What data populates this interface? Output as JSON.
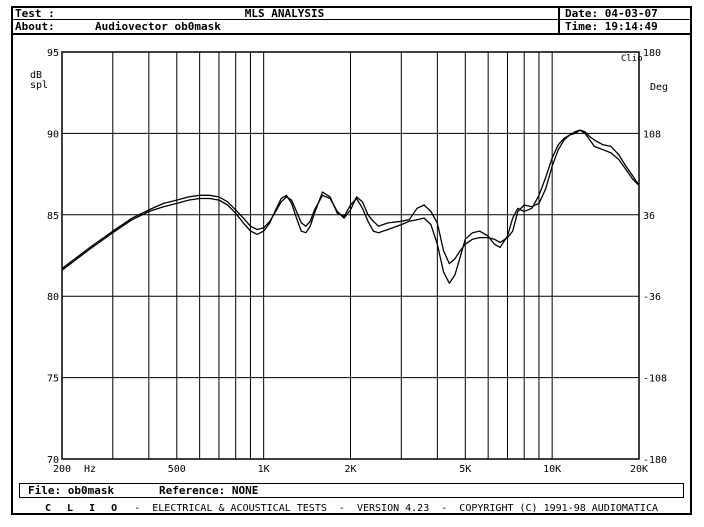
{
  "header": {
    "test_label": "Test :",
    "about_label": "About:",
    "title": "MLS ANALYSIS",
    "about_value": "Audiovector ob0mask",
    "date": "Date: 04-03-07",
    "time": "Time: 19:14:49"
  },
  "footer": {
    "file_label": "File: ob0mask",
    "reference_label": "Reference: NONE",
    "brand": "C L I O",
    "credits": "-  ELECTRICAL & ACOUSTICAL TESTS  -  VERSION 4.23  -  COPYRIGHT (C) 1991-98 AUDIOMATICA"
  },
  "chart_data": {
    "type": "line",
    "xscale": "log",
    "xlim": [
      200,
      20000
    ],
    "ylim": [
      70,
      95
    ],
    "y2lim": [
      -180,
      180
    ],
    "grid": true,
    "ylabel": "dB spl",
    "y2label": "Deg",
    "corner_label": "Clio",
    "x_unit": "Hz",
    "x_ticks": [
      {
        "value": 200,
        "label": "200"
      },
      {
        "value": 500,
        "label": "500"
      },
      {
        "value": 1000,
        "label": "1K"
      },
      {
        "value": 2000,
        "label": "2K"
      },
      {
        "value": 5000,
        "label": "5K"
      },
      {
        "value": 10000,
        "label": "10K"
      },
      {
        "value": 20000,
        "label": "20K"
      }
    ],
    "y_ticks": [
      95,
      90,
      85,
      80,
      75,
      70
    ],
    "y2_ticks": [
      180,
      108,
      36,
      -36,
      -108,
      -180
    ],
    "series": [
      {
        "values": [
          [
            200,
            81.7
          ],
          [
            250,
            83.0
          ],
          [
            300,
            84.0
          ],
          [
            350,
            84.8
          ],
          [
            400,
            85.3
          ],
          [
            450,
            85.7
          ],
          [
            500,
            85.9
          ],
          [
            550,
            86.1
          ],
          [
            600,
            86.2
          ],
          [
            650,
            86.2
          ],
          [
            700,
            86.1
          ],
          [
            750,
            85.8
          ],
          [
            800,
            85.3
          ],
          [
            850,
            84.8
          ],
          [
            900,
            84.3
          ],
          [
            950,
            84.1
          ],
          [
            1000,
            84.2
          ],
          [
            1050,
            84.6
          ],
          [
            1100,
            85.2
          ],
          [
            1150,
            85.8
          ],
          [
            1200,
            86.1
          ],
          [
            1250,
            85.9
          ],
          [
            1300,
            85.2
          ],
          [
            1350,
            84.5
          ],
          [
            1400,
            84.3
          ],
          [
            1450,
            84.6
          ],
          [
            1500,
            85.3
          ],
          [
            1600,
            86.2
          ],
          [
            1700,
            86.0
          ],
          [
            1800,
            85.2
          ],
          [
            1900,
            84.8
          ],
          [
            2000,
            85.3
          ],
          [
            2100,
            86.1
          ],
          [
            2200,
            85.8
          ],
          [
            2300,
            85.0
          ],
          [
            2400,
            84.6
          ],
          [
            2500,
            84.3
          ],
          [
            2700,
            84.5
          ],
          [
            3000,
            84.6
          ],
          [
            3200,
            84.7
          ],
          [
            3400,
            85.4
          ],
          [
            3600,
            85.6
          ],
          [
            3800,
            85.2
          ],
          [
            4000,
            84.5
          ],
          [
            4200,
            82.8
          ],
          [
            4400,
            82.0
          ],
          [
            4600,
            82.3
          ],
          [
            4800,
            82.8
          ],
          [
            5000,
            83.2
          ],
          [
            5300,
            83.5
          ],
          [
            5600,
            83.6
          ],
          [
            6000,
            83.6
          ],
          [
            6300,
            83.5
          ],
          [
            6600,
            83.3
          ],
          [
            7000,
            83.6
          ],
          [
            7300,
            84.0
          ],
          [
            7600,
            85.2
          ],
          [
            8000,
            85.6
          ],
          [
            8500,
            85.5
          ],
          [
            9000,
            85.7
          ],
          [
            9500,
            86.6
          ],
          [
            10000,
            88.0
          ],
          [
            10500,
            89.0
          ],
          [
            11000,
            89.6
          ],
          [
            11500,
            89.9
          ],
          [
            12000,
            90.0
          ],
          [
            12500,
            90.2
          ],
          [
            13000,
            90.1
          ],
          [
            13500,
            89.8
          ],
          [
            14000,
            89.6
          ],
          [
            15000,
            89.3
          ],
          [
            16000,
            89.2
          ],
          [
            17000,
            88.7
          ],
          [
            18000,
            88.0
          ],
          [
            19000,
            87.4
          ],
          [
            20000,
            86.8
          ]
        ]
      },
      {
        "values": [
          [
            200,
            81.6
          ],
          [
            250,
            82.9
          ],
          [
            300,
            83.9
          ],
          [
            350,
            84.7
          ],
          [
            400,
            85.2
          ],
          [
            450,
            85.5
          ],
          [
            500,
            85.7
          ],
          [
            550,
            85.9
          ],
          [
            600,
            86.0
          ],
          [
            650,
            86.0
          ],
          [
            700,
            85.9
          ],
          [
            750,
            85.6
          ],
          [
            800,
            85.1
          ],
          [
            850,
            84.5
          ],
          [
            900,
            84.0
          ],
          [
            950,
            83.8
          ],
          [
            1000,
            84.0
          ],
          [
            1050,
            84.5
          ],
          [
            1100,
            85.3
          ],
          [
            1150,
            86.0
          ],
          [
            1200,
            86.2
          ],
          [
            1250,
            85.7
          ],
          [
            1300,
            84.8
          ],
          [
            1350,
            84.0
          ],
          [
            1400,
            83.9
          ],
          [
            1450,
            84.3
          ],
          [
            1500,
            85.1
          ],
          [
            1600,
            86.4
          ],
          [
            1700,
            86.1
          ],
          [
            1800,
            85.1
          ],
          [
            1900,
            84.9
          ],
          [
            2000,
            85.6
          ],
          [
            2100,
            86.0
          ],
          [
            2200,
            85.4
          ],
          [
            2300,
            84.6
          ],
          [
            2400,
            84.0
          ],
          [
            2500,
            83.9
          ],
          [
            2700,
            84.1
          ],
          [
            3000,
            84.4
          ],
          [
            3200,
            84.6
          ],
          [
            3400,
            84.7
          ],
          [
            3600,
            84.8
          ],
          [
            3800,
            84.4
          ],
          [
            4000,
            83.2
          ],
          [
            4200,
            81.5
          ],
          [
            4400,
            80.8
          ],
          [
            4600,
            81.3
          ],
          [
            4800,
            82.4
          ],
          [
            5000,
            83.5
          ],
          [
            5300,
            83.9
          ],
          [
            5600,
            84.0
          ],
          [
            6000,
            83.7
          ],
          [
            6300,
            83.2
          ],
          [
            6600,
            83.0
          ],
          [
            7000,
            83.7
          ],
          [
            7300,
            84.8
          ],
          [
            7600,
            85.4
          ],
          [
            8000,
            85.2
          ],
          [
            8500,
            85.4
          ],
          [
            9000,
            86.2
          ],
          [
            9500,
            87.3
          ],
          [
            10000,
            88.5
          ],
          [
            10500,
            89.3
          ],
          [
            11000,
            89.7
          ],
          [
            11500,
            89.9
          ],
          [
            12000,
            90.1
          ],
          [
            12500,
            90.2
          ],
          [
            13000,
            90.0
          ],
          [
            13500,
            89.6
          ],
          [
            14000,
            89.2
          ],
          [
            15000,
            89.0
          ],
          [
            16000,
            88.8
          ],
          [
            17000,
            88.4
          ],
          [
            18000,
            87.8
          ],
          [
            19000,
            87.2
          ],
          [
            20000,
            86.8
          ]
        ]
      }
    ]
  }
}
